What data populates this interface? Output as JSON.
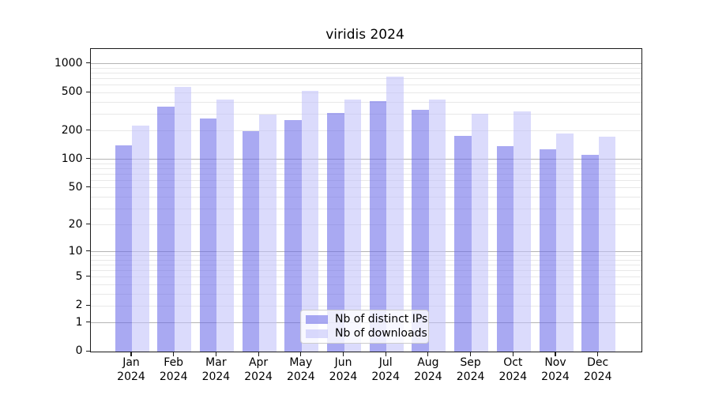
{
  "chart_data": {
    "type": "bar",
    "title": "viridis 2024",
    "categories": [
      "Jan",
      "Feb",
      "Mar",
      "Apr",
      "May",
      "Jun",
      "Jul",
      "Aug",
      "Sep",
      "Oct",
      "Nov",
      "Dec"
    ],
    "tick_year": "2024",
    "series": [
      {
        "name": "Nb of distinct IPs",
        "color": "rgba(106,106,232,0.58)",
        "values": [
          140,
          360,
          268,
          200,
          260,
          306,
          407,
          330,
          177,
          138,
          128,
          111
        ]
      },
      {
        "name": "Nb of downloads",
        "color": "rgba(193,193,249,0.58)",
        "values": [
          225,
          570,
          422,
          295,
          520,
          423,
          738,
          425,
          304,
          318,
          187,
          174
        ]
      }
    ],
    "xlabel": "",
    "ylabel": "",
    "y_ticks": [
      1000,
      500,
      200,
      100,
      50,
      20,
      10,
      5,
      2,
      1,
      0
    ],
    "ylim": [
      0,
      1430
    ],
    "yscale": "log1p",
    "grid": "both",
    "legend_position": "lower center",
    "colors": {
      "bar_dark_on_white": "#a8a8f0",
      "bar_light_on_white": "#d9d9fb",
      "grid_major": "#b4b4b4",
      "grid_minor": "#e8e8e8",
      "spine": "#1a1a1a"
    }
  }
}
